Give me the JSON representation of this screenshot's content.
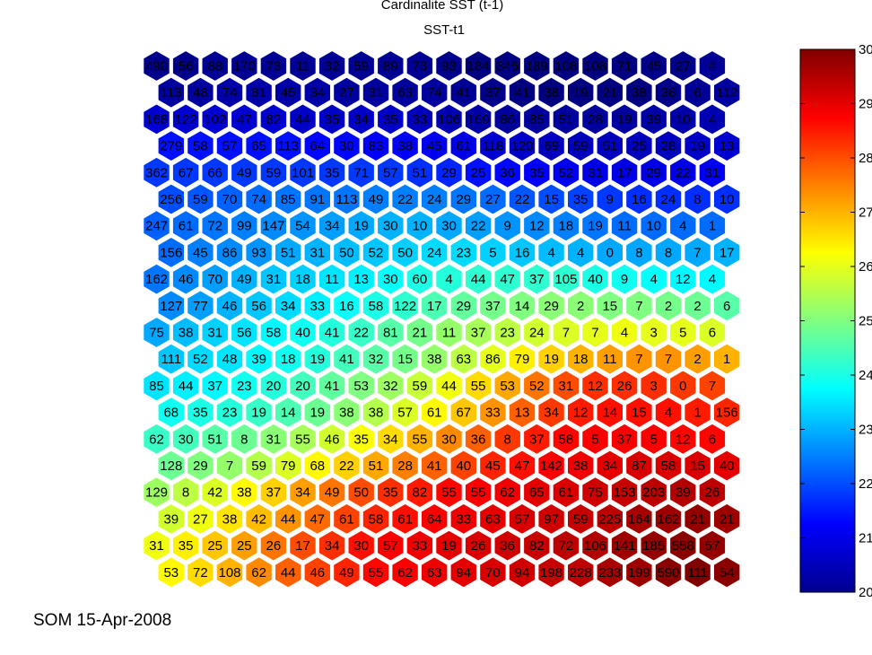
{
  "figure": {
    "title": "Cardinalite SST (t-1)",
    "subtitle": "SST-t1",
    "footer": "SOM 15-Apr-2008"
  },
  "chart_data": {
    "type": "heatmap",
    "title": "Cardinalite SST (t-1)",
    "subtitle": "SST-t1",
    "grid_shape": "hexagonal",
    "rows": 20,
    "cols": 20,
    "colormap": "jet",
    "colorbar": {
      "range": [
        20,
        30
      ],
      "ticks": [
        "20",
        "21",
        "22",
        "23",
        "24",
        "25",
        "26",
        "27",
        "28",
        "29",
        "30"
      ],
      "placement": "right"
    },
    "counts": [
      [
        490,
        56,
        88,
        170,
        73,
        11,
        32,
        59,
        89,
        73,
        93,
        184,
        346,
        189,
        108,
        108,
        71,
        45,
        27,
        4
      ],
      [
        113,
        48,
        74,
        81,
        45,
        34,
        27,
        31,
        63,
        74,
        41,
        37,
        41,
        38,
        19,
        21,
        38,
        38,
        6,
        112
      ],
      [
        168,
        122,
        102,
        47,
        82,
        44,
        35,
        34,
        35,
        33,
        106,
        169,
        86,
        85,
        51,
        28,
        19,
        39,
        10,
        4
      ],
      [
        279,
        58,
        57,
        65,
        113,
        64,
        30,
        83,
        38,
        45,
        61,
        118,
        120,
        69,
        59,
        51,
        25,
        28,
        19,
        13
      ],
      [
        362,
        67,
        66,
        49,
        59,
        101,
        35,
        71,
        57,
        51,
        29,
        25,
        36,
        35,
        52,
        31,
        17,
        29,
        22,
        31
      ],
      [
        256,
        59,
        70,
        74,
        85,
        91,
        113,
        49,
        22,
        24,
        29,
        27,
        22,
        15,
        35,
        9,
        16,
        24,
        8,
        10
      ],
      [
        247,
        61,
        72,
        99,
        147,
        54,
        34,
        19,
        30,
        10,
        30,
        22,
        9,
        12,
        18,
        19,
        11,
        10,
        4,
        1
      ],
      [
        156,
        45,
        86,
        93,
        51,
        31,
        50,
        52,
        50,
        24,
        23,
        5,
        16,
        4,
        4,
        0,
        8,
        8,
        7,
        17
      ],
      [
        162,
        46,
        70,
        49,
        31,
        18,
        11,
        13,
        30,
        60,
        4,
        44,
        47,
        37,
        105,
        40,
        9,
        4,
        12,
        4
      ],
      [
        127,
        77,
        46,
        56,
        34,
        33,
        16,
        58,
        122,
        17,
        29,
        37,
        14,
        29,
        2,
        15,
        7,
        2,
        2,
        6
      ],
      [
        75,
        38,
        31,
        56,
        58,
        40,
        41,
        22,
        81,
        21,
        11,
        37,
        23,
        24,
        7,
        7,
        4,
        3,
        5,
        6
      ],
      [
        111,
        52,
        48,
        39,
        18,
        19,
        41,
        32,
        15,
        38,
        63,
        86,
        79,
        19,
        18,
        11,
        7,
        7,
        2,
        1
      ],
      [
        85,
        44,
        37,
        23,
        20,
        20,
        41,
        53,
        32,
        59,
        44,
        55,
        53,
        52,
        31,
        12,
        26,
        3,
        0,
        7
      ],
      [
        68,
        35,
        23,
        19,
        14,
        19,
        38,
        38,
        57,
        61,
        67,
        33,
        13,
        34,
        12,
        14,
        15,
        4,
        1,
        156
      ],
      [
        62,
        30,
        51,
        8,
        31,
        55,
        46,
        35,
        34,
        55,
        30,
        36,
        8,
        37,
        58,
        5,
        37,
        5,
        12,
        6
      ],
      [
        128,
        29,
        7,
        59,
        79,
        68,
        22,
        51,
        28,
        41,
        40,
        45,
        47,
        142,
        38,
        34,
        87,
        58,
        15,
        40
      ],
      [
        129,
        8,
        42,
        38,
        37,
        34,
        49,
        50,
        35,
        82,
        55,
        55,
        62,
        65,
        61,
        75,
        153,
        203,
        39,
        26
      ],
      [
        39,
        27,
        38,
        42,
        44,
        47,
        61,
        58,
        61,
        64,
        33,
        63,
        57,
        97,
        59,
        225,
        164,
        162,
        21,
        21
      ],
      [
        31,
        35,
        25,
        25,
        26,
        17,
        34,
        30,
        57,
        33,
        19,
        26,
        36,
        82,
        72,
        106,
        141,
        185,
        558,
        57
      ],
      [
        53,
        72,
        108,
        62,
        44,
        46,
        49,
        55,
        62,
        63,
        94,
        70,
        94,
        198,
        228,
        233,
        199,
        590,
        111,
        54
      ]
    ],
    "sst": [
      [
        20.1,
        20.1,
        20.2,
        20.2,
        20.2,
        20.2,
        20.2,
        20.2,
        20.2,
        20.2,
        20.1,
        20.0,
        19.9,
        19.9,
        19.9,
        19.9,
        20.0,
        20.1,
        20.1,
        20.2
      ],
      [
        20.3,
        20.3,
        20.4,
        20.4,
        20.4,
        20.4,
        20.3,
        20.3,
        20.3,
        20.3,
        20.2,
        20.1,
        20.0,
        20.0,
        20.0,
        20.0,
        20.0,
        20.1,
        20.2,
        20.3
      ],
      [
        20.8,
        20.8,
        20.8,
        20.8,
        20.8,
        20.7,
        20.7,
        20.7,
        20.7,
        20.6,
        20.5,
        20.4,
        20.3,
        20.3,
        20.3,
        20.3,
        20.3,
        20.4,
        20.4,
        20.5
      ],
      [
        21.4,
        21.4,
        21.4,
        21.4,
        21.4,
        21.3,
        21.3,
        21.2,
        21.2,
        21.1,
        21.0,
        20.8,
        20.7,
        20.6,
        20.6,
        20.6,
        20.6,
        20.6,
        20.7,
        20.8
      ],
      [
        21.8,
        21.8,
        21.8,
        21.8,
        21.8,
        21.8,
        21.8,
        21.8,
        21.8,
        21.7,
        21.6,
        21.4,
        21.3,
        21.2,
        21.1,
        21.0,
        21.0,
        21.0,
        21.0,
        21.1
      ],
      [
        22.0,
        22.1,
        22.2,
        22.3,
        22.4,
        22.4,
        22.4,
        22.5,
        22.5,
        22.5,
        22.4,
        22.3,
        22.1,
        22.0,
        21.9,
        21.8,
        21.7,
        21.7,
        21.7,
        21.7
      ],
      [
        22.2,
        22.3,
        22.4,
        22.5,
        22.6,
        22.7,
        22.8,
        22.9,
        23.0,
        23.0,
        22.9,
        22.8,
        22.7,
        22.6,
        22.5,
        22.4,
        22.3,
        22.3,
        22.3,
        22.3
      ],
      [
        22.3,
        22.5,
        22.6,
        22.7,
        22.9,
        23.0,
        23.1,
        23.2,
        23.3,
        23.4,
        23.4,
        23.3,
        23.2,
        23.1,
        23.0,
        22.9,
        22.9,
        22.9,
        22.9,
        23.0
      ],
      [
        22.4,
        22.6,
        22.8,
        23.0,
        23.2,
        23.3,
        23.5,
        23.6,
        23.8,
        24.0,
        24.1,
        24.2,
        24.2,
        24.2,
        24.2,
        24.0,
        23.9,
        23.8,
        23.7,
        23.7
      ],
      [
        22.6,
        22.8,
        23.0,
        23.2,
        23.4,
        23.6,
        23.8,
        24.0,
        24.2,
        24.5,
        24.7,
        24.9,
        25.0,
        25.1,
        25.1,
        25.0,
        25.0,
        24.9,
        24.8,
        24.6
      ],
      [
        22.9,
        23.1,
        23.3,
        23.5,
        23.7,
        23.9,
        24.1,
        24.3,
        24.6,
        24.9,
        25.2,
        25.4,
        25.6,
        25.8,
        25.9,
        26.0,
        26.1,
        26.0,
        26.0,
        25.9
      ],
      [
        23.2,
        23.4,
        23.5,
        23.7,
        23.9,
        24.1,
        24.4,
        24.6,
        24.9,
        25.2,
        25.6,
        26.0,
        26.4,
        26.7,
        27.0,
        27.2,
        27.3,
        27.3,
        27.2,
        27.0
      ],
      [
        23.5,
        23.6,
        23.7,
        23.9,
        24.1,
        24.4,
        24.7,
        25.0,
        25.3,
        25.7,
        26.1,
        26.6,
        27.1,
        27.6,
        28.0,
        28.3,
        28.3,
        28.3,
        28.2,
        28.1
      ],
      [
        23.9,
        24.0,
        24.1,
        24.3,
        24.5,
        24.8,
        25.1,
        25.5,
        25.9,
        26.3,
        26.8,
        27.3,
        27.8,
        28.2,
        28.5,
        28.6,
        28.6,
        28.6,
        28.5,
        28.4
      ],
      [
        24.3,
        24.4,
        24.6,
        24.8,
        25.1,
        25.4,
        25.8,
        26.2,
        26.6,
        27.0,
        27.4,
        27.8,
        28.2,
        28.5,
        28.7,
        28.8,
        28.8,
        28.8,
        28.7,
        28.7
      ],
      [
        24.8,
        25.0,
        25.2,
        25.5,
        25.9,
        26.3,
        26.7,
        27.1,
        27.5,
        27.8,
        28.1,
        28.4,
        28.6,
        28.8,
        28.9,
        29.0,
        29.1,
        29.1,
        29.1,
        29.0
      ],
      [
        25.3,
        25.6,
        25.9,
        26.3,
        26.7,
        27.2,
        27.6,
        28.0,
        28.3,
        28.5,
        28.7,
        28.8,
        28.9,
        29.0,
        29.1,
        29.2,
        29.3,
        29.4,
        29.5,
        29.4
      ],
      [
        25.8,
        26.1,
        26.5,
        26.9,
        27.3,
        27.7,
        28.1,
        28.4,
        28.6,
        28.8,
        28.9,
        29.0,
        29.1,
        29.2,
        29.3,
        29.4,
        29.6,
        29.7,
        29.8,
        29.7
      ],
      [
        26.1,
        26.4,
        26.8,
        27.2,
        27.6,
        28.0,
        28.3,
        28.6,
        28.8,
        28.9,
        29.0,
        29.1,
        29.2,
        29.3,
        29.4,
        29.5,
        29.7,
        29.8,
        29.9,
        29.8
      ],
      [
        26.3,
        26.6,
        27.0,
        27.4,
        27.8,
        28.1,
        28.4,
        28.7,
        28.8,
        28.9,
        29.0,
        29.1,
        29.2,
        29.3,
        29.4,
        29.6,
        29.7,
        29.9,
        30.0,
        29.9
      ]
    ]
  }
}
